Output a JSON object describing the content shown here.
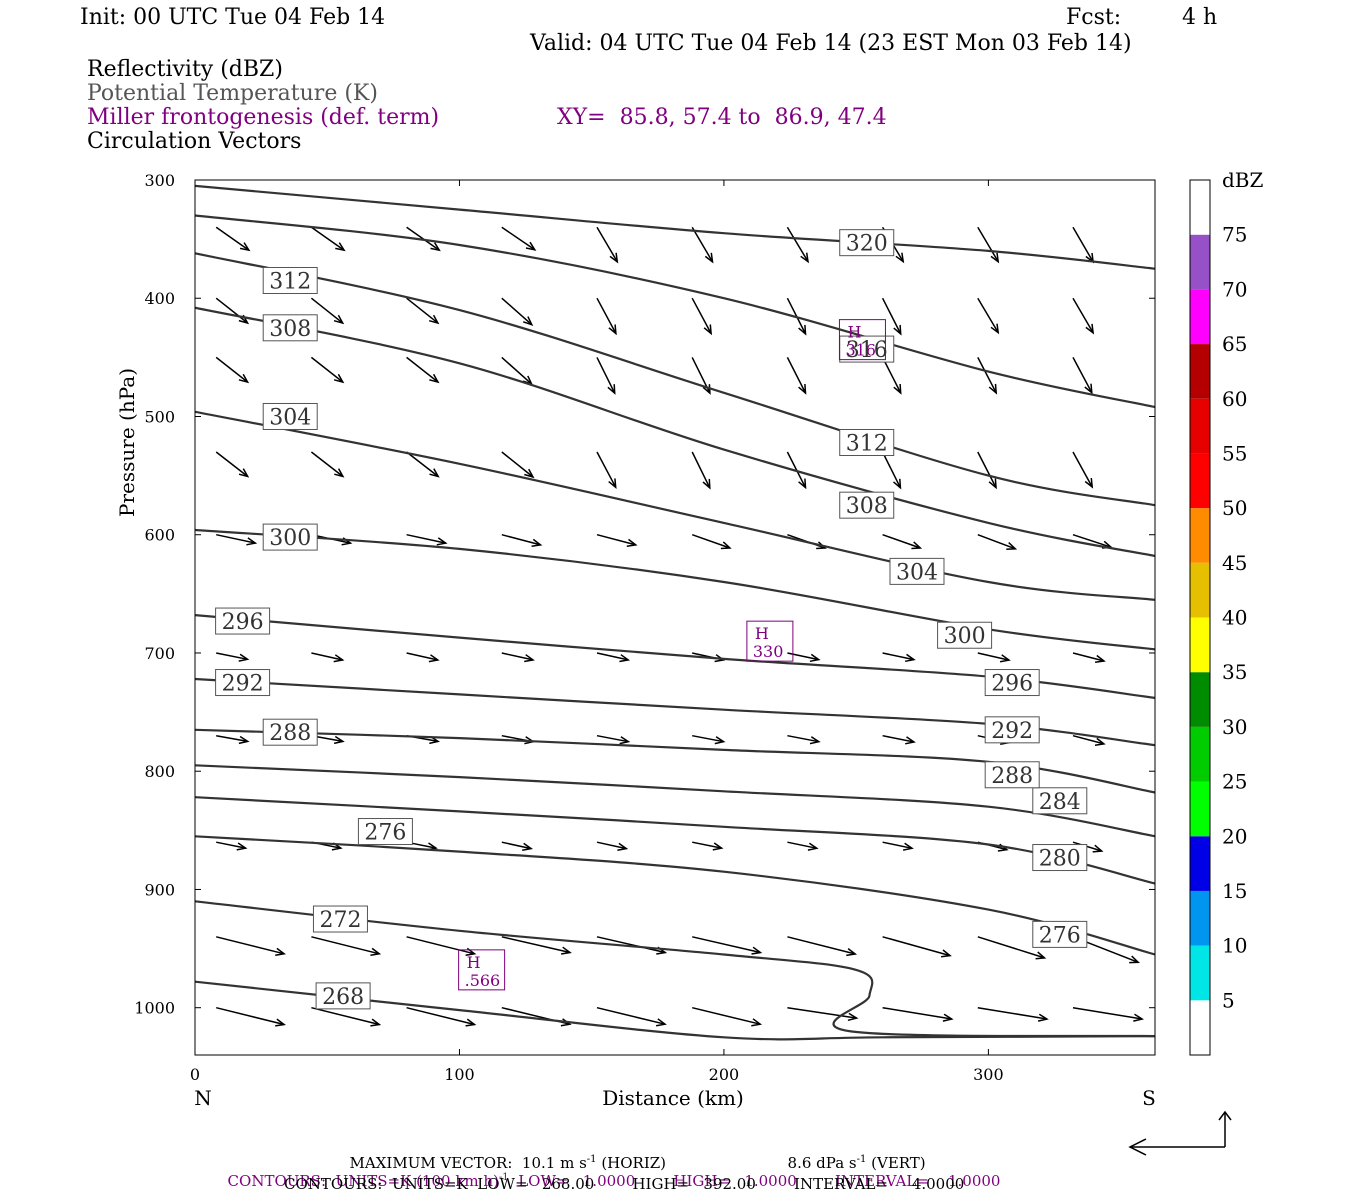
{
  "header": {
    "init": "Init: 00 UTC Tue 04 Feb 14",
    "fcst_label": "Fcst:",
    "fcst_value": "4 h",
    "valid": "Valid: 04 UTC Tue 04 Feb 14 (23 EST Mon 03 Feb 14)",
    "fields": [
      "Reflectivity (dBZ)",
      "Potential Temperature (K)",
      "Miller frontogenesis (def. term)",
      "Circulation Vectors"
    ],
    "xy": "XY=  85.8, 57.4 to  86.9, 47.4"
  },
  "colors": {
    "contour": "#333333",
    "purple": "#800080",
    "gray_text": "#555555"
  },
  "chart_data": {
    "type": "line",
    "subtype": "vertical cross-section (isentropes + circulation vectors)",
    "xlabel": "Distance (km)",
    "ylabel": "Pressure (hPa)",
    "xlim": [
      0,
      363
    ],
    "ylim": [
      1040,
      300
    ],
    "x_ticks": [
      0,
      100,
      200,
      300
    ],
    "x_tick_labels": [
      "0",
      "100",
      "200",
      "300"
    ],
    "y_ticks": [
      300,
      400,
      500,
      600,
      700,
      800,
      900,
      1000
    ],
    "y_tick_labels": [
      "300",
      "400",
      "500",
      "600",
      "700",
      "800",
      "900",
      "1000"
    ],
    "x_end_labels": {
      "left": "N",
      "right": "S"
    },
    "series": [
      {
        "name": "268",
        "x": [
          0,
          100,
          200,
          260,
          363
        ],
        "y": [
          978,
          1002,
          1025,
          1025,
          1024
        ],
        "labels": [
          {
            "x": 56,
            "y": 990
          }
        ]
      },
      {
        "name": "272",
        "x": [
          0,
          100,
          200,
          250,
          255,
          248,
          363
        ],
        "y": [
          910,
          935,
          955,
          968,
          990,
          1020,
          1024
        ],
        "labels": [
          {
            "x": 55,
            "y": 925
          }
        ]
      },
      {
        "name": "276",
        "x": [
          0,
          100,
          200,
          300,
          363
        ],
        "y": [
          855,
          868,
          885,
          917,
          955
        ],
        "labels": [
          {
            "x": 72,
            "y": 851
          },
          {
            "x": 327,
            "y": 938
          }
        ]
      },
      {
        "name": "280",
        "x": [
          0,
          100,
          200,
          300,
          363
        ],
        "y": [
          822,
          834,
          847,
          862,
          895
        ],
        "labels": [
          {
            "x": 327,
            "y": 873
          }
        ]
      },
      {
        "name": "284",
        "x": [
          0,
          100,
          200,
          300,
          363
        ],
        "y": [
          795,
          805,
          817,
          830,
          855
        ],
        "labels": [
          {
            "x": 327,
            "y": 825
          }
        ]
      },
      {
        "name": "288",
        "x": [
          0,
          100,
          200,
          300,
          363
        ],
        "y": [
          765,
          772,
          782,
          792,
          818
        ],
        "labels": [
          {
            "x": 36,
            "y": 767
          },
          {
            "x": 309,
            "y": 803
          }
        ]
      },
      {
        "name": "292",
        "x": [
          0,
          100,
          200,
          300,
          363
        ],
        "y": [
          722,
          735,
          748,
          760,
          778
        ],
        "labels": [
          {
            "x": 18,
            "y": 725
          },
          {
            "x": 309,
            "y": 765
          }
        ]
      },
      {
        "name": "296",
        "x": [
          0,
          100,
          200,
          300,
          363
        ],
        "y": [
          668,
          687,
          705,
          720,
          738
        ],
        "labels": [
          {
            "x": 18,
            "y": 673
          },
          {
            "x": 309,
            "y": 725
          }
        ]
      },
      {
        "name": "300",
        "x": [
          0,
          100,
          200,
          300,
          363
        ],
        "y": [
          596,
          612,
          640,
          680,
          697
        ],
        "labels": [
          {
            "x": 36,
            "y": 602
          },
          {
            "x": 291,
            "y": 685
          }
        ]
      },
      {
        "name": "304",
        "x": [
          0,
          100,
          200,
          300,
          363
        ],
        "y": [
          496,
          540,
          590,
          640,
          655
        ],
        "labels": [
          {
            "x": 36,
            "y": 500
          },
          {
            "x": 273,
            "y": 631
          }
        ]
      },
      {
        "name": "308",
        "x": [
          0,
          100,
          200,
          300,
          363
        ],
        "y": [
          408,
          455,
          528,
          590,
          618
        ],
        "labels": [
          {
            "x": 36,
            "y": 425
          },
          {
            "x": 254,
            "y": 575
          }
        ]
      },
      {
        "name": "312",
        "x": [
          0,
          100,
          200,
          300,
          363
        ],
        "y": [
          362,
          410,
          480,
          550,
          575
        ],
        "labels": [
          {
            "x": 36,
            "y": 385
          },
          {
            "x": 254,
            "y": 522
          }
        ]
      },
      {
        "name": "316",
        "x": [
          0,
          100,
          200,
          300,
          363
        ],
        "y": [
          330,
          355,
          400,
          462,
          492
        ],
        "labels": [
          {
            "x": 254,
            "y": 443
          }
        ]
      },
      {
        "name": "320",
        "x": [
          0,
          100,
          200,
          300,
          363
        ],
        "y": [
          305,
          325,
          345,
          360,
          375
        ],
        "labels": [
          {
            "x": 254,
            "y": 353
          }
        ]
      }
    ],
    "extrema": [
      {
        "type": "H",
        "value": ".566",
        "x": 108,
        "y": 968
      },
      {
        "type": "H",
        "value": "330",
        "x": 217,
        "y": 690
      },
      {
        "type": "H",
        "value": "316",
        "x": 252,
        "y": 435
      }
    ],
    "colorbar": {
      "title": "dBZ",
      "levels": [
        "5",
        "10",
        "15",
        "20",
        "25",
        "30",
        "35",
        "40",
        "45",
        "50",
        "55",
        "60",
        "65",
        "70",
        "75"
      ],
      "colors": [
        "#00e6e6",
        "#0096f0",
        "#0000e6",
        "#00ff00",
        "#00cc00",
        "#008c00",
        "#ffff00",
        "#e6c000",
        "#ff8c00",
        "#ff0000",
        "#e60000",
        "#b40000",
        "#ff00ff",
        "#9650c8",
        "#ffffff"
      ]
    }
  },
  "footer": {
    "max_vector": "MAXIMUM VECTOR:  10.1 m s",
    "max_vector_sup": "-1",
    "max_vector_horiz": "(HORIZ)",
    "max_vector_vert": "8.6 dPa s",
    "max_vector_vert_sup": "-1",
    "max_vector_vert_tag": "(VERT)",
    "contours_purple_a": "CONTOURS:  UNITS=K (100 km h)",
    "contours_purple_sup": "-1",
    "contours_purple_b": "  LOW=   1.0000        HIGH=   1.0000        INTERVAL=    1.0000",
    "contours_black": "CONTOURS:  UNITS=K  LOW=   268.00        HIGH=   392.00        INTERVAL=     4.0000"
  }
}
